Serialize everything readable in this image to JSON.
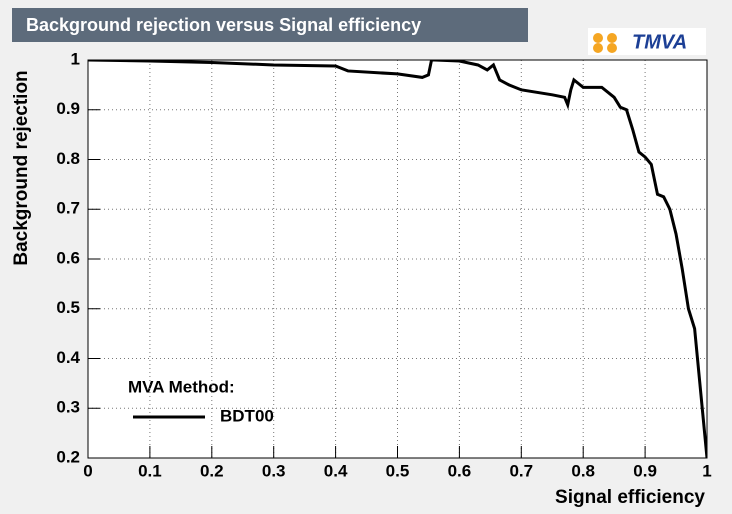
{
  "chart_data": {
    "type": "line",
    "title": "Background rejection versus Signal efficiency",
    "logo": "TMVA",
    "x_label": "Signal efficiency",
    "y_label": "Background rejection",
    "legend_title": "MVA Method:",
    "grid": true,
    "xlim": [
      0,
      1
    ],
    "ylim": [
      0.2,
      1
    ],
    "xticks": [
      0,
      0.1,
      0.2,
      0.3,
      0.4,
      0.5,
      0.6,
      0.7,
      0.8,
      0.9,
      1
    ],
    "yticks": [
      0.2,
      0.3,
      0.4,
      0.5,
      0.6,
      0.7,
      0.8,
      0.9,
      1
    ],
    "x": [
      0,
      0.1,
      0.2,
      0.3,
      0.4,
      0.42,
      0.5,
      0.54,
      0.55,
      0.555,
      0.56,
      0.6,
      0.63,
      0.645,
      0.655,
      0.66,
      0.665,
      0.68,
      0.7,
      0.75,
      0.77,
      0.775,
      0.78,
      0.785,
      0.79,
      0.8,
      0.83,
      0.85,
      0.86,
      0.87,
      0.88,
      0.89,
      0.9,
      0.91,
      0.92,
      0.93,
      0.94,
      0.95,
      0.96,
      0.97,
      0.98,
      0.99,
      1.0
    ],
    "series": [
      {
        "name": "BDT00",
        "color": "#000000",
        "values": [
          1.0,
          0.998,
          0.995,
          0.99,
          0.988,
          0.978,
          0.972,
          0.965,
          0.97,
          1.0,
          1.0,
          0.998,
          0.99,
          0.98,
          0.99,
          0.975,
          0.96,
          0.95,
          0.94,
          0.93,
          0.925,
          0.91,
          0.94,
          0.96,
          0.955,
          0.945,
          0.945,
          0.925,
          0.905,
          0.9,
          0.86,
          0.815,
          0.805,
          0.79,
          0.73,
          0.725,
          0.7,
          0.65,
          0.58,
          0.5,
          0.46,
          0.33,
          0.2
        ]
      }
    ]
  }
}
